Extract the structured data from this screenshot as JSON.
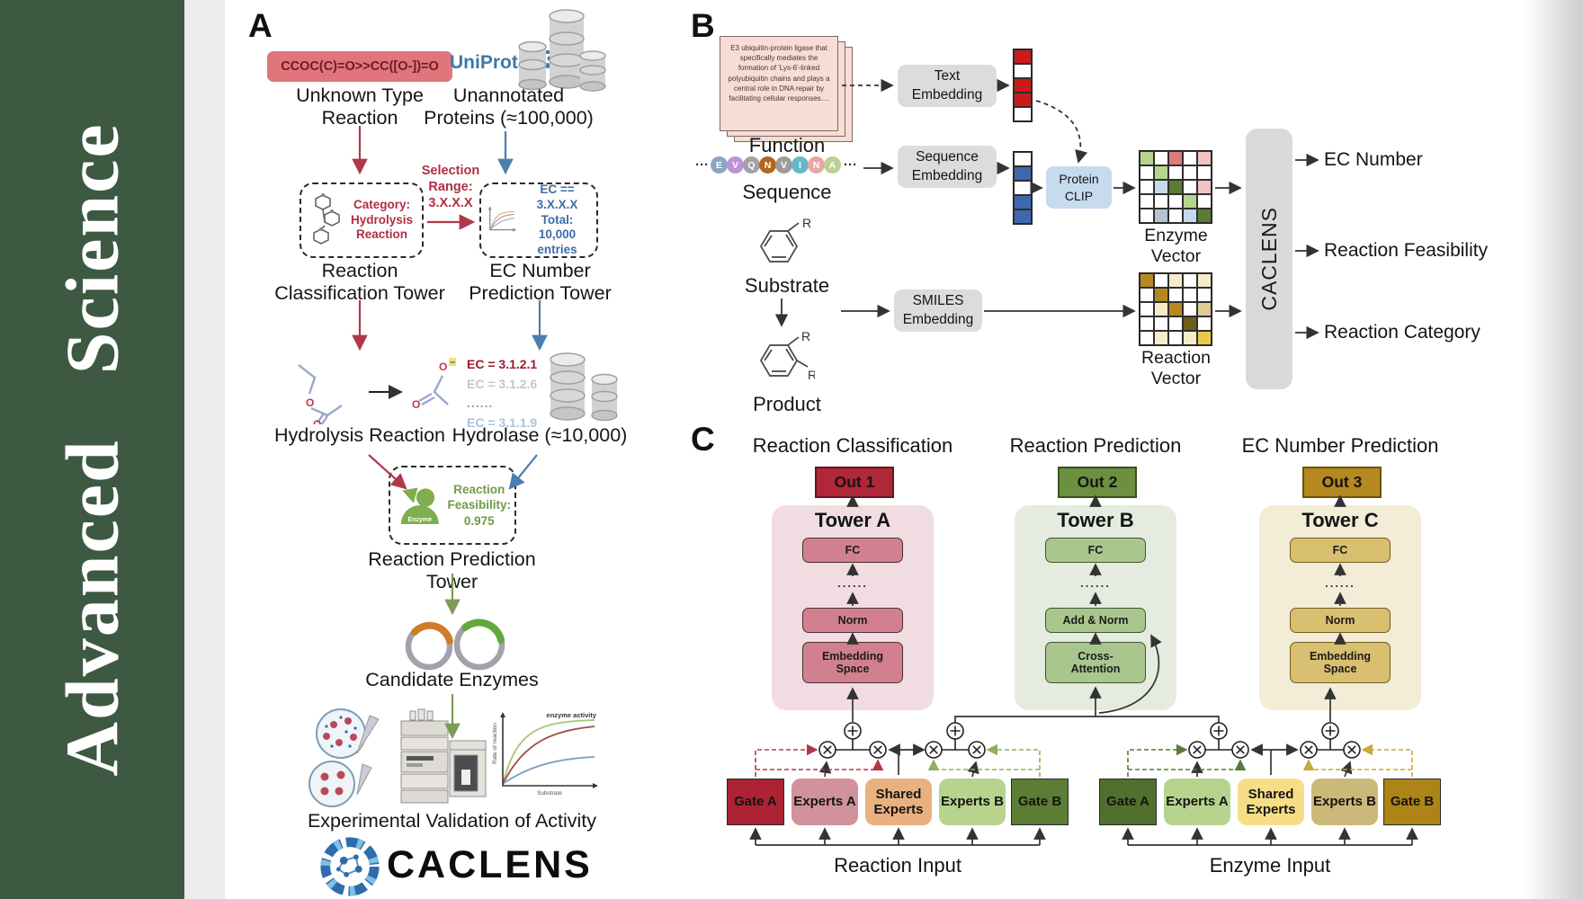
{
  "journal": {
    "words": [
      "Advanced",
      "Science"
    ]
  },
  "panelA": {
    "label": "A",
    "smiles": "CCOC(C)=O>>CC([O-])=O",
    "unknown_reaction": "Unknown Type\nReaction",
    "uniprot": "UniProt",
    "unannotated": "Unannotated\nProteins (≈100,000)",
    "selection_range": "Selection\nRange:\n3.X.X.X",
    "category_box": "Category:\nHydrolysis\nReaction",
    "ec_box": "EC == 3.X.X.X\nTotal: 10,000\nentries",
    "classification_tower": "Reaction\nClassification Tower",
    "ec_prediction_tower": "EC Number\nPrediction Tower",
    "hydrolysis_reaction": "Hydrolysis Reaction",
    "ec_list": [
      "EC = 3.1.2.1",
      "EC = 3.1.2.6",
      "......",
      "EC = 3.1.1.9"
    ],
    "hydrolase": "Hydrolase (≈10,000)",
    "enzyme_label": "Enzyme",
    "feasibility": "Reaction\nFeasibility:\n0.975",
    "reaction_prediction_tower": "Reaction Prediction Tower",
    "candidate_enzymes": "Candidate Enzymes",
    "plot": {
      "ylabel": "Rate of reaction",
      "xlabel": "Substrate",
      "note": "enzyme activity"
    },
    "validation": "Experimental Validation of Activity",
    "brand": "CACLENS",
    "atom_o": "O",
    "atom_minus": "–"
  },
  "panelB": {
    "label": "B",
    "function_card": "E3 ubiquitin-protein ligase that specifically mediates the formation of 'Lys-6'-linked polyubiquitin chains and plays a central role in DNA repair by facilitating cellular responses....",
    "function": "Function",
    "sequence_letters": [
      "E",
      "V",
      "Q",
      "N",
      "V",
      "I",
      "N",
      "A"
    ],
    "ellipsis": "···",
    "sequence": "Sequence",
    "substrate": "Substrate",
    "product": "Product",
    "r_label": "R",
    "text_embedding": "Text\nEmbedding",
    "sequence_embedding": "Sequence\nEmbedding",
    "smiles_embedding": "SMILES\nEmbedding",
    "protein_clip": "Protein\nCLIP",
    "enzyme_vector": "Enzyme Vector",
    "reaction_vector": "Reaction Vector",
    "caclens_bar": "CACLENS",
    "outputs": [
      "EC Number",
      "Reaction Feasibility",
      "Reaction Category"
    ],
    "vectors": {
      "text_vec": "rwrrw",
      "seq_vec": "wBwBB",
      "enzyme_grid": [
        "gwewp",
        "wgwww",
        "wbGwp",
        "wwwgw",
        "wswbG"
      ],
      "reaction_grid": [
        "dwcwc",
        "wdwww",
        "wcdwt",
        "wwwow",
        "wcwcy"
      ]
    }
  },
  "panelC": {
    "label": "C",
    "columns": [
      {
        "header": "Reaction Classification",
        "out": "Out 1",
        "tower": "Tower A",
        "fc": "FC",
        "dots": "......",
        "norm": "Norm",
        "bottom": "Embedding\nSpace"
      },
      {
        "header": "Reaction Prediction",
        "out": "Out 2",
        "tower": "Tower B",
        "fc": "FC",
        "dots": "......",
        "norm": "Add & Norm",
        "bottom": "Cross-\nAttention"
      },
      {
        "header": "EC Number Prediction",
        "out": "Out 3",
        "tower": "Tower C",
        "fc": "FC",
        "dots": "......",
        "norm": "Norm",
        "bottom": "Embedding\nSpace"
      }
    ],
    "moe": [
      {
        "blocks": [
          "Gate A",
          "Experts A",
          "Shared\nExperts",
          "Experts B",
          "Gate B"
        ],
        "input": "Reaction Input"
      },
      {
        "blocks": [
          "Gate A",
          "Experts A",
          "Shared\nExperts",
          "Experts B",
          "Gate B"
        ],
        "input": "Enzyme Input"
      }
    ]
  },
  "colors": {
    "journal_green": "#3d5942",
    "accent_red": "#b0384a",
    "accent_blue": "#4a7fae",
    "accent_green": "#7d9b57",
    "out1": "#b02738",
    "out2": "#6d9040",
    "out3": "#b5891f",
    "map": {
      "w": "#ffffff",
      "r": "#cc1a1a",
      "B": "#3e68ae",
      "g": "#b7d48e",
      "G": "#5c7c34",
      "e": "#e07a7a",
      "p": "#f3c2c2",
      "b": "#c6d9ed",
      "s": "#b6c3cd",
      "d": "#b5891f",
      "c": "#f6eccb",
      "t": "#dfcc92",
      "o": "#6f5e1a",
      "y": "#eac84e"
    },
    "seq": [
      "#8ba6c2",
      "#ba93d9",
      "#a2a2a2",
      "#b5651d",
      "#9c9c9c",
      "#64b9c5",
      "#e9a6a6",
      "#bad094"
    ]
  }
}
